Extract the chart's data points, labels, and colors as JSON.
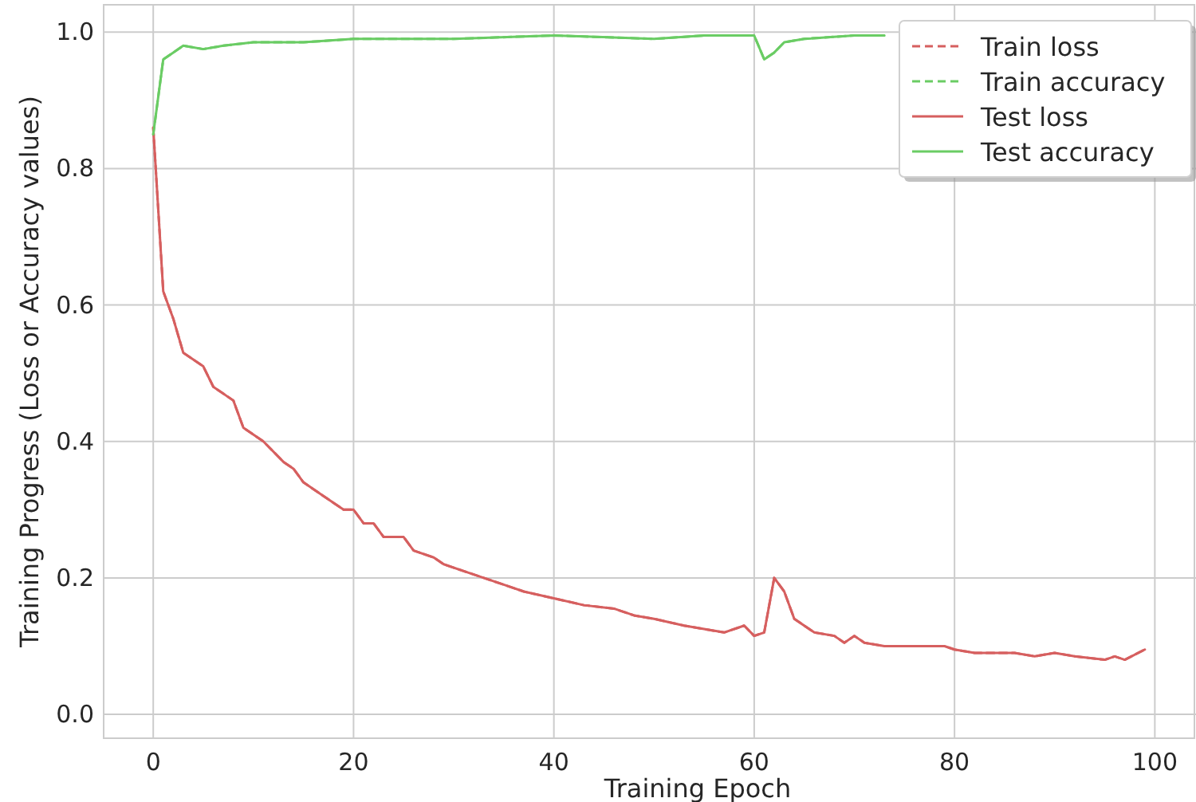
{
  "chart_data": {
    "type": "line",
    "xlabel": "Training Epoch",
    "ylabel": "Training Progress (Loss or Accuracy values)",
    "xlim": [
      -4.95,
      103.95
    ],
    "ylim": [
      -0.035,
      1.04
    ],
    "xticks": [
      0,
      20,
      40,
      60,
      80,
      100
    ],
    "yticks": [
      {
        "value": 0,
        "label": "0.0"
      },
      {
        "value": 0.2,
        "label": "0.2"
      },
      {
        "value": 0.4,
        "label": "0.4"
      },
      {
        "value": 0.6,
        "label": "0.6"
      },
      {
        "value": 0.8,
        "label": "0.8"
      },
      {
        "value": 1,
        "label": "1.0"
      }
    ],
    "grid": true,
    "legend": "top right",
    "series": [
      {
        "name": "Train loss",
        "color": "#d65f5f",
        "line_style": "dashed",
        "x": [
          0,
          1,
          2,
          3,
          5,
          6,
          8,
          9,
          11,
          13,
          14,
          15,
          17,
          19,
          20,
          21,
          22,
          23,
          25,
          26,
          28,
          29,
          31,
          33,
          35,
          37,
          40,
          43,
          46,
          48,
          50,
          53,
          55,
          57,
          59,
          60,
          61,
          62,
          63,
          64,
          66,
          68,
          69,
          70,
          71,
          73,
          75,
          77,
          79,
          80,
          82,
          84,
          86,
          88,
          90,
          92,
          95,
          96,
          97,
          99
        ],
        "values": [
          0.86,
          0.62,
          0.58,
          0.53,
          0.51,
          0.48,
          0.46,
          0.42,
          0.4,
          0.37,
          0.36,
          0.34,
          0.32,
          0.3,
          0.3,
          0.28,
          0.28,
          0.26,
          0.26,
          0.24,
          0.23,
          0.22,
          0.21,
          0.2,
          0.19,
          0.18,
          0.17,
          0.16,
          0.155,
          0.145,
          0.14,
          0.13,
          0.125,
          0.12,
          0.13,
          0.115,
          0.12,
          0.2,
          0.18,
          0.14,
          0.12,
          0.115,
          0.105,
          0.115,
          0.105,
          0.1,
          0.1,
          0.1,
          0.1,
          0.095,
          0.09,
          0.09,
          0.09,
          0.085,
          0.09,
          0.085,
          0.08,
          0.085,
          0.08,
          0.095
        ]
      },
      {
        "name": "Train accuracy",
        "color": "#6acc64",
        "line_style": "dashed",
        "x": [
          0,
          1,
          2,
          3,
          5,
          7,
          10,
          15,
          20,
          25,
          30,
          40,
          50,
          55,
          60,
          61,
          62,
          63,
          65,
          70,
          73
        ],
        "values": [
          0.85,
          0.96,
          0.97,
          0.98,
          0.975,
          0.98,
          0.985,
          0.985,
          0.99,
          0.99,
          0.99,
          0.995,
          0.99,
          0.995,
          0.995,
          0.96,
          0.97,
          0.985,
          0.99,
          0.995,
          0.995
        ]
      },
      {
        "name": "Test loss",
        "color": "#d65f5f",
        "line_style": "solid",
        "x": [
          0,
          1,
          2,
          3,
          5,
          6,
          8,
          9,
          11,
          13,
          14,
          15,
          17,
          19,
          20,
          21,
          22,
          23,
          25,
          26,
          28,
          29,
          31,
          33,
          35,
          37,
          40,
          43,
          46,
          48,
          50,
          53,
          55,
          57,
          59,
          60,
          61,
          62,
          63,
          64,
          66,
          68,
          69,
          70,
          71,
          73,
          75,
          77,
          79,
          80,
          82,
          84,
          86,
          88,
          90,
          92,
          95,
          96,
          97,
          99
        ],
        "values": [
          0.86,
          0.62,
          0.58,
          0.53,
          0.51,
          0.48,
          0.46,
          0.42,
          0.4,
          0.37,
          0.36,
          0.34,
          0.32,
          0.3,
          0.3,
          0.28,
          0.28,
          0.26,
          0.26,
          0.24,
          0.23,
          0.22,
          0.21,
          0.2,
          0.19,
          0.18,
          0.17,
          0.16,
          0.155,
          0.145,
          0.14,
          0.13,
          0.125,
          0.12,
          0.13,
          0.115,
          0.12,
          0.2,
          0.18,
          0.14,
          0.12,
          0.115,
          0.105,
          0.115,
          0.105,
          0.1,
          0.1,
          0.1,
          0.1,
          0.095,
          0.09,
          0.09,
          0.09,
          0.085,
          0.09,
          0.085,
          0.08,
          0.085,
          0.08,
          0.095
        ]
      },
      {
        "name": "Test accuracy",
        "color": "#6acc64",
        "line_style": "solid",
        "x": [
          0,
          1,
          2,
          3,
          5,
          7,
          10,
          15,
          20,
          25,
          30,
          40,
          50,
          55,
          60,
          61,
          62,
          63,
          65,
          70,
          73
        ],
        "values": [
          0.85,
          0.96,
          0.97,
          0.98,
          0.975,
          0.98,
          0.985,
          0.985,
          0.99,
          0.99,
          0.99,
          0.995,
          0.99,
          0.995,
          0.995,
          0.96,
          0.97,
          0.985,
          0.99,
          0.995,
          0.995
        ]
      }
    ]
  }
}
